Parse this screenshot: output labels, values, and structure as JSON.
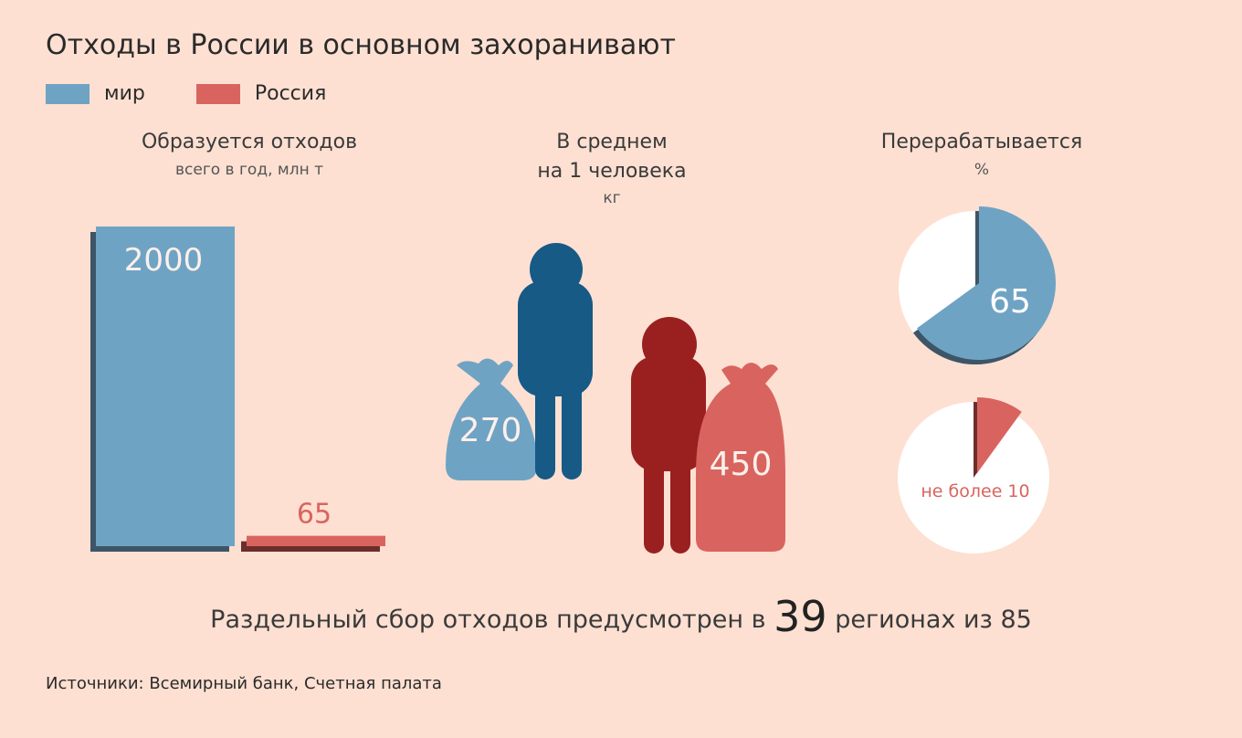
{
  "title": "Отходы в России в основном захоранивают",
  "colors": {
    "world": "#6fa3c4",
    "world_dark": "#3d5566",
    "russia": "#d9645f",
    "russia_dark": "#6b2e2b",
    "person_world": "#165a85",
    "person_russia": "#9a2020",
    "background": "#fde0d2"
  },
  "legend": [
    {
      "label": "мир",
      "color": "#6fa3c4"
    },
    {
      "label": "Россия",
      "color": "#d9645f"
    }
  ],
  "sections": {
    "waste": {
      "title": "Образуется отходов",
      "subtitle": "всего в год, млн т"
    },
    "per_person": {
      "title_line1": "В среднем",
      "title_line2": "на 1 человека",
      "subtitle": "кг"
    },
    "recycled": {
      "title": "Перерабатывается",
      "subtitle": "%"
    }
  },
  "chart_data": [
    {
      "type": "bar",
      "title": "Образуется отходов",
      "subtitle": "всего в год, млн т",
      "categories": [
        "мир",
        "Россия"
      ],
      "values": [
        2000,
        65
      ],
      "value_labels": [
        "2000",
        "65"
      ]
    },
    {
      "type": "bar",
      "title": "В среднем на 1 человека",
      "subtitle": "кг",
      "categories": [
        "мир",
        "Россия"
      ],
      "values": [
        270,
        450
      ],
      "value_labels": [
        "270",
        "450"
      ]
    },
    {
      "type": "pie",
      "title": "Перерабатывается",
      "subtitle": "%",
      "pies": [
        {
          "series": "мир",
          "value": 65,
          "label": "65"
        },
        {
          "series": "Россия",
          "value": 10,
          "label": "не более 10"
        }
      ]
    }
  ],
  "footer": {
    "text_before": "Раздельный сбор отходов предусмотрен в",
    "big_number": "39",
    "text_after": "регионах из 85"
  },
  "source": "Источники: Всемирный банк, Счетная палата"
}
